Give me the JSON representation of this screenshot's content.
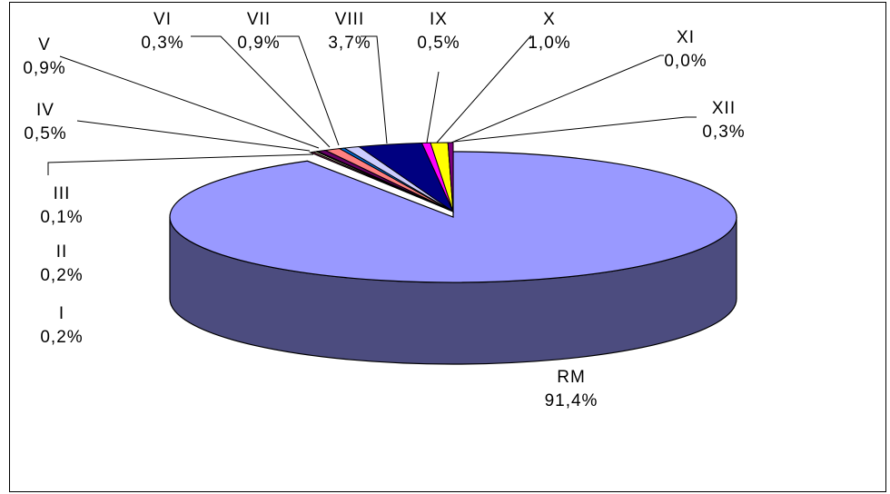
{
  "chart_data": {
    "type": "pie",
    "style": "3d-exploded",
    "title": "",
    "slices": [
      {
        "name": "RM",
        "label": "RM",
        "value": 91.4,
        "value_label": "91,4%",
        "color": "#9999ff"
      },
      {
        "name": "I",
        "label": "I",
        "value": 0.2,
        "value_label": "0,2%",
        "color": "#993366"
      },
      {
        "name": "II",
        "label": "II",
        "value": 0.2,
        "value_label": "0,2%",
        "color": "#ffffcc"
      },
      {
        "name": "III",
        "label": "III",
        "value": 0.1,
        "value_label": "0,1%",
        "color": "#ccffff"
      },
      {
        "name": "IV",
        "label": "IV",
        "value": 0.5,
        "value_label": "0,5%",
        "color": "#660066"
      },
      {
        "name": "V",
        "label": "V",
        "value": 0.9,
        "value_label": "0,9%",
        "color": "#ff8080"
      },
      {
        "name": "VI",
        "label": "VI",
        "value": 0.3,
        "value_label": "0,3%",
        "color": "#0066cc"
      },
      {
        "name": "VII",
        "label": "VII",
        "value": 0.9,
        "value_label": "0,9%",
        "color": "#ccccff"
      },
      {
        "name": "VIII",
        "label": "VIII",
        "value": 3.7,
        "value_label": "3,7%",
        "color": "#000080"
      },
      {
        "name": "IX",
        "label": "IX",
        "value": 0.5,
        "value_label": "0,5%",
        "color": "#ff00ff"
      },
      {
        "name": "X",
        "label": "X",
        "value": 1.0,
        "value_label": "1,0%",
        "color": "#ffff00"
      },
      {
        "name": "XI",
        "label": "XI",
        "value": 0.0,
        "value_label": "0,0%",
        "color": "#00ffff"
      },
      {
        "name": "XII",
        "label": "XII",
        "value": 0.3,
        "value_label": "0,3%",
        "color": "#800080"
      }
    ]
  }
}
